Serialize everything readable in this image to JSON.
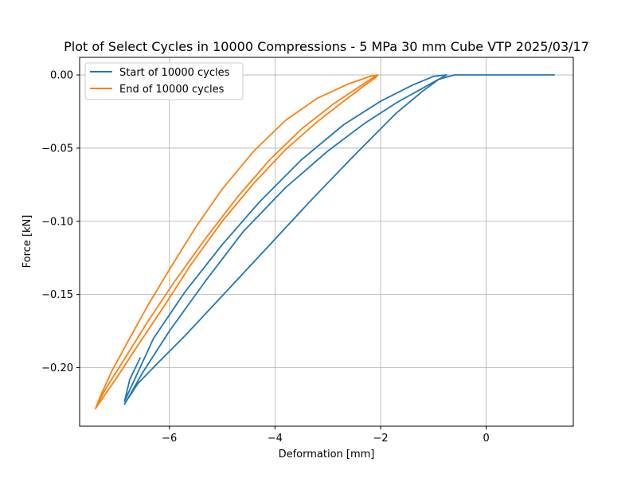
{
  "chart_data": {
    "type": "line",
    "title": "Plot of Select Cycles in 10000 Compressions - 5 MPa 30 mm Cube VTP 2025/03/17",
    "xlabel": "Deformation [mm]",
    "ylabel": "Force [kN]",
    "xlim": [
      -7.7,
      1.65
    ],
    "ylim": [
      -0.24,
      0.012
    ],
    "xticks": [
      -6,
      -4,
      -2,
      0
    ],
    "xtick_labels": [
      "−6",
      "−4",
      "−2",
      "0"
    ],
    "yticks": [
      0.0,
      -0.05,
      -0.1,
      -0.15,
      -0.2
    ],
    "ytick_labels": [
      "0.00",
      "−0.05",
      "−0.10",
      "−0.15",
      "−0.20"
    ],
    "grid": true,
    "legend_position": "upper-left",
    "series": [
      {
        "name": "Start of 10000 cycles",
        "color": "#1f77b4",
        "x": [
          1.3,
          0.6,
          -0.3,
          -0.6,
          -0.9,
          -1.2,
          -1.7,
          -2.3,
          -3.0,
          -3.8,
          -4.6,
          -5.3,
          -6.0,
          -6.5,
          -6.85,
          -6.8,
          -6.6,
          -6.25,
          -5.7,
          -5.0,
          -4.2,
          -3.3,
          -2.5,
          -1.7,
          -1.2,
          -0.9,
          -0.75,
          -1.0,
          -1.4,
          -2.0,
          -2.7,
          -3.5,
          -4.3,
          -5.0,
          -5.7,
          -6.3,
          -6.85,
          -6.75,
          -6.55
        ],
        "y": [
          0.0,
          0.0,
          0.0,
          0.0,
          -0.003,
          -0.009,
          -0.019,
          -0.033,
          -0.052,
          -0.077,
          -0.107,
          -0.14,
          -0.175,
          -0.203,
          -0.225,
          -0.222,
          -0.211,
          -0.198,
          -0.178,
          -0.151,
          -0.12,
          -0.085,
          -0.055,
          -0.026,
          -0.011,
          -0.003,
          0.0,
          -0.001,
          -0.007,
          -0.018,
          -0.034,
          -0.058,
          -0.087,
          -0.116,
          -0.148,
          -0.18,
          -0.223,
          -0.208,
          -0.193
        ]
      },
      {
        "name": "End of 10000 cycles",
        "color": "#ff7f0e",
        "x": [
          -2.05,
          -2.1,
          -2.3,
          -2.7,
          -3.2,
          -3.8,
          -4.4,
          -5.0,
          -5.6,
          -6.1,
          -6.6,
          -7.0,
          -7.25,
          -7.4,
          -7.3,
          -7.1,
          -6.8,
          -6.4,
          -6.0,
          -5.5,
          -5.0,
          -4.4,
          -3.8,
          -3.2,
          -2.6,
          -2.2,
          -2.05,
          -2.15,
          -2.4,
          -2.9,
          -3.5,
          -4.1,
          -4.7,
          -5.3,
          -5.9,
          -6.4,
          -6.85,
          -7.2,
          -7.35
        ],
        "y": [
          0.0,
          -0.002,
          -0.007,
          -0.018,
          -0.032,
          -0.051,
          -0.074,
          -0.1,
          -0.13,
          -0.158,
          -0.185,
          -0.207,
          -0.22,
          -0.228,
          -0.219,
          -0.203,
          -0.183,
          -0.157,
          -0.133,
          -0.104,
          -0.078,
          -0.052,
          -0.031,
          -0.016,
          -0.006,
          -0.001,
          0.0,
          -0.002,
          -0.008,
          -0.02,
          -0.037,
          -0.058,
          -0.083,
          -0.111,
          -0.141,
          -0.168,
          -0.194,
          -0.214,
          -0.224
        ]
      }
    ]
  }
}
